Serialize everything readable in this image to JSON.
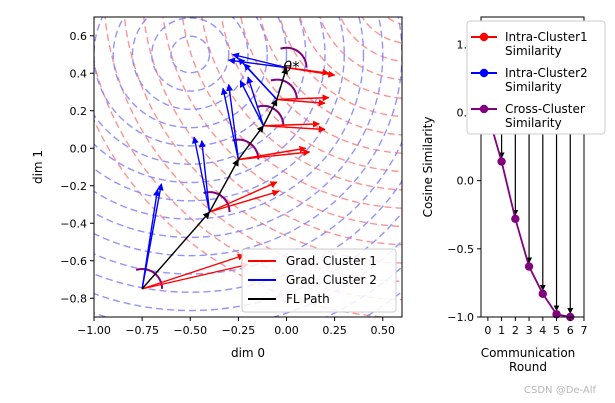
{
  "chart_data": [
    {
      "type": "scatter",
      "xlabel": "dim 0",
      "ylabel": "dim 1",
      "xlim": [
        -1.0,
        0.6
      ],
      "ylim": [
        -0.9,
        0.7
      ],
      "xticks": [
        "−1.00",
        "−0.75",
        "−0.50",
        "−0.25",
        "0.00",
        "0.25",
        "0.50"
      ],
      "xtick_values": [
        -1.0,
        -0.75,
        -0.5,
        -0.25,
        0.0,
        0.25,
        0.5
      ],
      "yticks": [
        "−0.8",
        "−0.6",
        "−0.4",
        "−0.2",
        "0.0",
        "0.2",
        "0.4",
        "0.6"
      ],
      "ytick_values": [
        -0.8,
        -0.6,
        -0.4,
        -0.2,
        0.0,
        0.2,
        0.4,
        0.6
      ],
      "contour_centers": [
        {
          "cluster": "Grad. Cluster 1",
          "x": 0.65,
          "y": 0.85,
          "color": "#ff8080"
        },
        {
          "cluster": "Grad. Cluster 2",
          "x": -0.5,
          "y": 0.5,
          "color": "#8080ff"
        }
      ],
      "fl_path": [
        [
          -0.75,
          -0.75
        ],
        [
          -0.4,
          -0.34
        ],
        [
          -0.25,
          -0.06
        ],
        [
          -0.12,
          0.12
        ],
        [
          -0.05,
          0.26
        ],
        [
          0.0,
          0.43
        ]
      ],
      "cluster1_arrows": [
        [
          [
            -0.75,
            -0.75
          ],
          [
            -0.2,
            -0.62
          ]
        ],
        [
          [
            -0.75,
            -0.75
          ],
          [
            -0.22,
            -0.57
          ]
        ],
        [
          [
            -0.4,
            -0.34
          ],
          [
            -0.05,
            -0.18
          ]
        ],
        [
          [
            -0.4,
            -0.34
          ],
          [
            -0.04,
            -0.23
          ]
        ],
        [
          [
            -0.25,
            -0.06
          ],
          [
            0.1,
            0.0
          ]
        ],
        [
          [
            -0.25,
            -0.06
          ],
          [
            0.12,
            -0.02
          ]
        ],
        [
          [
            -0.12,
            0.12
          ],
          [
            0.17,
            0.13
          ]
        ],
        [
          [
            -0.12,
            0.12
          ],
          [
            0.2,
            0.1
          ]
        ],
        [
          [
            -0.05,
            0.26
          ],
          [
            0.22,
            0.27
          ]
        ],
        [
          [
            -0.05,
            0.26
          ],
          [
            0.2,
            0.24
          ]
        ],
        [
          [
            0.0,
            0.43
          ],
          [
            0.25,
            0.39
          ]
        ],
        [
          [
            0.0,
            0.43
          ],
          [
            0.22,
            0.4
          ]
        ]
      ],
      "cluster2_arrows": [
        [
          [
            -0.75,
            -0.75
          ],
          [
            -0.65,
            -0.19
          ]
        ],
        [
          [
            -0.75,
            -0.75
          ],
          [
            -0.67,
            -0.22
          ]
        ],
        [
          [
            -0.4,
            -0.34
          ],
          [
            -0.48,
            0.06
          ]
        ],
        [
          [
            -0.4,
            -0.34
          ],
          [
            -0.44,
            0.04
          ]
        ],
        [
          [
            -0.25,
            -0.06
          ],
          [
            -0.3,
            0.34
          ]
        ],
        [
          [
            -0.25,
            -0.06
          ],
          [
            -0.33,
            0.32
          ]
        ],
        [
          [
            -0.12,
            0.12
          ],
          [
            -0.2,
            0.38
          ]
        ],
        [
          [
            -0.12,
            0.12
          ],
          [
            -0.24,
            0.36
          ]
        ],
        [
          [
            -0.05,
            0.26
          ],
          [
            -0.25,
            0.48
          ]
        ],
        [
          [
            -0.05,
            0.26
          ],
          [
            -0.22,
            0.45
          ]
        ],
        [
          [
            0.0,
            0.43
          ],
          [
            -0.28,
            0.5
          ]
        ],
        [
          [
            0.0,
            0.43
          ],
          [
            -0.3,
            0.47
          ]
        ]
      ],
      "angle_arcs": [
        [
          -0.75,
          -0.75
        ],
        [
          -0.4,
          -0.34
        ],
        [
          -0.25,
          -0.06
        ],
        [
          -0.12,
          0.12
        ],
        [
          -0.05,
          0.26
        ],
        [
          0.0,
          0.43
        ]
      ],
      "annotation": "θ*",
      "legend": [
        "Grad. Cluster 1",
        "Grad. Cluster 2",
        "FL Path"
      ],
      "legend_colors": [
        "#ff0000",
        "#0000ff",
        "#000000"
      ]
    },
    {
      "type": "line",
      "xlabel": "Communication Round",
      "xlabel_lines": [
        "Communication",
        "Round"
      ],
      "ylabel": "Cosine Similarity",
      "xlim": [
        -0.5,
        7
      ],
      "ylim": [
        -1.0,
        1.2
      ],
      "xticks": [
        "0",
        "1",
        "2",
        "3",
        "4",
        "5",
        "6",
        "7"
      ],
      "xtick_values": [
        0,
        1,
        2,
        3,
        4,
        5,
        6,
        7
      ],
      "yticks": [
        "−1.0",
        "−0.5",
        "0.0",
        "0.5",
        "1.0"
      ],
      "ytick_values": [
        -1.0,
        -0.5,
        0.0,
        0.5,
        1.0
      ],
      "x": [
        0,
        1,
        2,
        3,
        4,
        5,
        6
      ],
      "series": [
        {
          "name": "Intra-Cluster1 Similarity",
          "name_lines": [
            "Intra-Cluster1",
            "Similarity"
          ],
          "color": "#ff0000",
          "values": [
            1.0,
            1.0,
            1.0,
            1.0,
            1.0,
            1.0,
            1.0
          ]
        },
        {
          "name": "Intra-Cluster2 Similarity",
          "name_lines": [
            "Intra-Cluster2",
            "Similarity"
          ],
          "color": "#0000ff",
          "values": [
            1.0,
            1.0,
            1.0,
            1.0,
            1.0,
            1.0,
            1.0
          ]
        },
        {
          "name": "Cross-Cluster Similarity",
          "name_lines": [
            "Cross-Cluster",
            "Similarity"
          ],
          "color": "#800080",
          "values": [
            0.49,
            0.14,
            -0.28,
            -0.63,
            -0.83,
            -0.98,
            -1.0
          ]
        }
      ]
    }
  ],
  "watermark": "CSDN @De-Alf"
}
